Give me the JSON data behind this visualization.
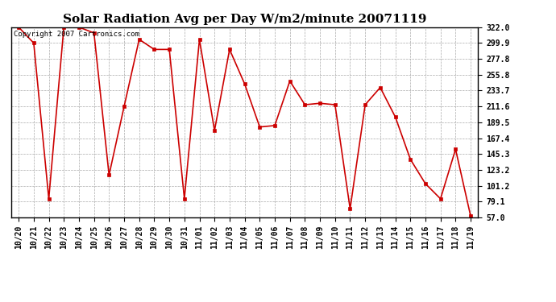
{
  "title": "Solar Radiation Avg per Day W/m2/minute 20071119",
  "copyright_text": "Copyright 2007 Cartronics.com",
  "dates": [
    "10/20",
    "10/21",
    "10/22",
    "10/23",
    "10/24",
    "10/25",
    "10/26",
    "10/27",
    "10/28",
    "10/29",
    "10/30",
    "10/31",
    "11/01",
    "11/02",
    "11/03",
    "11/04",
    "11/05",
    "11/06",
    "11/07",
    "11/08",
    "11/09",
    "11/10",
    "11/11",
    "11/12",
    "11/13",
    "11/14",
    "11/15",
    "11/16",
    "11/17",
    "11/18",
    "11/19"
  ],
  "values": [
    322.0,
    299.9,
    83.0,
    322.0,
    322.0,
    314.0,
    116.0,
    211.6,
    305.0,
    291.0,
    291.0,
    83.0,
    305.0,
    178.0,
    291.0,
    243.0,
    183.0,
    185.0,
    247.0,
    214.0,
    216.0,
    214.0,
    69.0,
    214.0,
    238.0,
    197.0,
    138.0,
    104.0,
    83.0,
    152.0,
    59.0
  ],
  "ylim": [
    57.0,
    322.0
  ],
  "yticks": [
    57.0,
    79.1,
    101.2,
    123.2,
    145.3,
    167.4,
    189.5,
    211.6,
    233.7,
    255.8,
    277.8,
    299.9,
    322.0
  ],
  "line_color": "#cc0000",
  "marker": "s",
  "marker_size": 3,
  "background_color": "#ffffff",
  "grid_color": "#aaaaaa",
  "title_fontsize": 11,
  "tick_fontsize": 7,
  "copyright_fontsize": 6.5,
  "fig_width": 6.9,
  "fig_height": 3.75,
  "fig_dpi": 100
}
